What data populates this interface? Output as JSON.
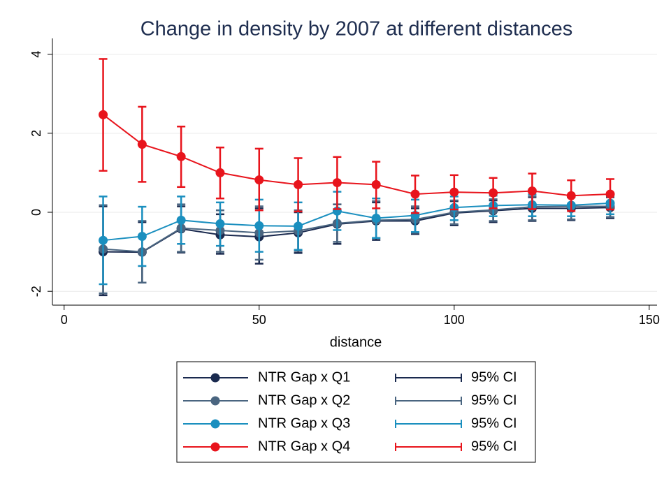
{
  "chart_data": {
    "type": "line-errorbar",
    "title": "Change in density by 2007 at different distances",
    "x_label": "distance",
    "x": [
      10,
      20,
      30,
      40,
      50,
      60,
      70,
      80,
      90,
      100,
      110,
      120,
      130,
      140
    ],
    "xlim": [
      -3,
      152
    ],
    "xticks": [
      0,
      50,
      100,
      150
    ],
    "ylim": [
      -2.35,
      4.4
    ],
    "yticks": [
      -2,
      0,
      2,
      4
    ],
    "grid": true,
    "series": [
      {
        "name": "NTR Gap x Q1",
        "ci_label": "95% CI",
        "color": "#1a2a4f",
        "values": [
          -1.0,
          -1.01,
          -0.42,
          -0.57,
          -0.62,
          -0.52,
          -0.3,
          -0.22,
          -0.22,
          -0.02,
          0.04,
          0.1,
          0.1,
          0.12
        ],
        "lower": [
          -2.1,
          -1.78,
          -1.02,
          -1.05,
          -1.3,
          -1.03,
          -0.8,
          -0.7,
          -0.55,
          -0.33,
          -0.25,
          -0.22,
          -0.2,
          -0.15
        ],
        "upper": [
          0.15,
          -0.25,
          0.15,
          -0.05,
          0.1,
          0.0,
          0.2,
          0.25,
          0.1,
          0.28,
          0.3,
          0.38,
          0.38,
          0.38
        ]
      },
      {
        "name": "NTR Gap x Q2",
        "ci_label": "95% CI",
        "color": "#4a6580",
        "values": [
          -0.93,
          -1.0,
          -0.4,
          -0.46,
          -0.52,
          -0.47,
          -0.28,
          -0.2,
          -0.18,
          0.0,
          0.06,
          0.14,
          0.15,
          0.15
        ],
        "lower": [
          -2.05,
          -1.78,
          -1.0,
          -1.0,
          -1.2,
          -0.98,
          -0.75,
          -0.65,
          -0.52,
          -0.3,
          -0.22,
          -0.2,
          -0.18,
          -0.12
        ],
        "upper": [
          0.18,
          -0.22,
          0.2,
          0.05,
          0.15,
          0.05,
          0.2,
          0.28,
          0.15,
          0.3,
          0.33,
          0.4,
          0.4,
          0.4
        ]
      },
      {
        "name": "NTR Gap x Q3",
        "ci_label": "95% CI",
        "color": "#1a8fbf",
        "values": [
          -0.71,
          -0.61,
          -0.2,
          -0.29,
          -0.34,
          -0.35,
          0.03,
          -0.15,
          -0.08,
          0.12,
          0.17,
          0.19,
          0.18,
          0.23
        ],
        "lower": [
          -1.82,
          -1.36,
          -0.8,
          -0.85,
          -1.0,
          -0.95,
          -0.45,
          -0.65,
          -0.5,
          -0.2,
          -0.1,
          -0.1,
          -0.1,
          -0.05
        ],
        "upper": [
          0.4,
          0.14,
          0.4,
          0.25,
          0.32,
          0.25,
          0.52,
          0.35,
          0.32,
          0.4,
          0.42,
          0.45,
          0.43,
          0.48
        ]
      },
      {
        "name": "NTR Gap x Q4",
        "ci_label": "95% CI",
        "color": "#e8141c",
        "values": [
          2.47,
          1.72,
          1.41,
          1.0,
          0.82,
          0.7,
          0.75,
          0.7,
          0.46,
          0.51,
          0.49,
          0.54,
          0.42,
          0.46
        ],
        "lower": [
          1.05,
          0.77,
          0.64,
          0.35,
          0.05,
          0.02,
          0.08,
          0.1,
          -0.02,
          0.07,
          0.1,
          0.08,
          0.03,
          0.07
        ],
        "upper": [
          3.88,
          2.67,
          2.17,
          1.64,
          1.61,
          1.37,
          1.4,
          1.28,
          0.93,
          0.94,
          0.87,
          0.98,
          0.81,
          0.84
        ]
      }
    ]
  }
}
